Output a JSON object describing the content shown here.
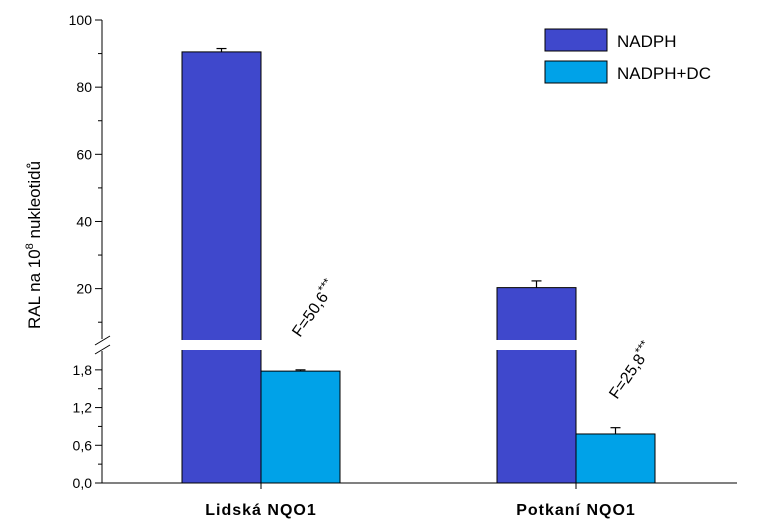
{
  "chart_data": {
    "type": "bar",
    "categories": [
      "Lidská NQO1",
      "Potkaní NQO1"
    ],
    "series": [
      {
        "name": "NADPH",
        "values": [
          90.5,
          20.3
        ],
        "errors": [
          1.0,
          2.0
        ],
        "color": "#3f48cc"
      },
      {
        "name": "NADPH+DC",
        "values": [
          1.78,
          0.78
        ],
        "errors": [
          0.02,
          0.1
        ],
        "color": "#00a2e8"
      }
    ],
    "ylabel": {
      "prefix": "RAL na 10",
      "sup": "8",
      "suffix": " nukleotidů"
    },
    "y_axis": {
      "broken": true,
      "lower_segment": {
        "range": [
          0,
          2.1
        ],
        "ticks": [
          "0,0",
          "0,6",
          "1,2",
          "1,8"
        ],
        "tick_values": [
          0,
          0.6,
          1.2,
          1.8
        ]
      },
      "upper_segment": {
        "range": [
          5,
          100
        ],
        "ticks": [
          "20",
          "40",
          "60",
          "80",
          "100"
        ],
        "tick_values": [
          20,
          40,
          60,
          80,
          100
        ]
      }
    },
    "annotations": [
      {
        "category": "Lidská NQO1",
        "text": "F=50,6",
        "stars": "***"
      },
      {
        "category": "Potkaní NQO1",
        "text": "F=25,8",
        "stars": "***"
      }
    ],
    "legend_position": "top-right",
    "grid": false
  }
}
